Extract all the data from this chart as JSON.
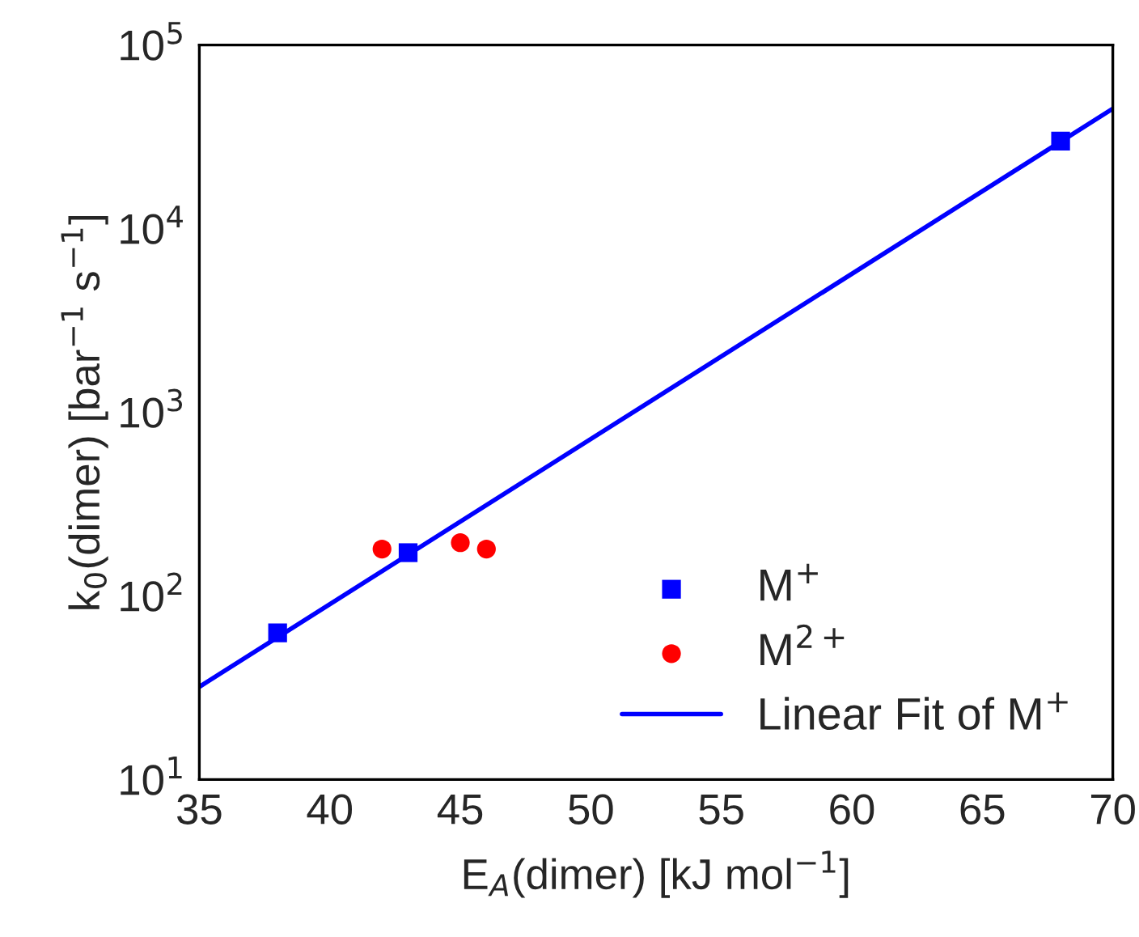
{
  "chart_data": {
    "type": "scatter",
    "xlabel": "E$_{A}$(dimer) [kJ mol$^{−1}$]",
    "ylabel": "k$_{0}$(dimer) [bar$^{−1}$ s$^{−1}$]",
    "log": "y",
    "xlim": [
      35,
      70
    ],
    "xticks": [
      35,
      40,
      45,
      50,
      55,
      60,
      65,
      70
    ],
    "ylim": [
      10,
      100000
    ],
    "yticks": [
      {
        "value": 10,
        "label": "10$^{1}$"
      },
      {
        "value": 100,
        "label": "10$^{2}$"
      },
      {
        "value": 1000,
        "label": "10$^{3}$"
      },
      {
        "value": 10000,
        "label": "10$^{4}$"
      },
      {
        "value": 100000,
        "label": "10$^{5}$"
      }
    ],
    "grid": false,
    "legend": "bottom right",
    "series": [
      {
        "name": "M$^{+}$",
        "color": "#0000ff",
        "marker": "square",
        "x": [
          38,
          43,
          68
        ],
        "values": [
          63,
          172,
          30000
        ]
      },
      {
        "name": "M$^{2+}$",
        "color": "#ff0000",
        "marker": "circle",
        "x": [
          42,
          45,
          46
        ],
        "values": [
          180,
          195,
          180
        ]
      },
      {
        "name": "Linear Fit of M$^{+}$",
        "type": "line",
        "color": "#0000ff",
        "marker": "none",
        "line_style": "solid",
        "x": [
          35,
          70
        ],
        "values": [
          32,
          45000
        ]
      }
    ]
  }
}
